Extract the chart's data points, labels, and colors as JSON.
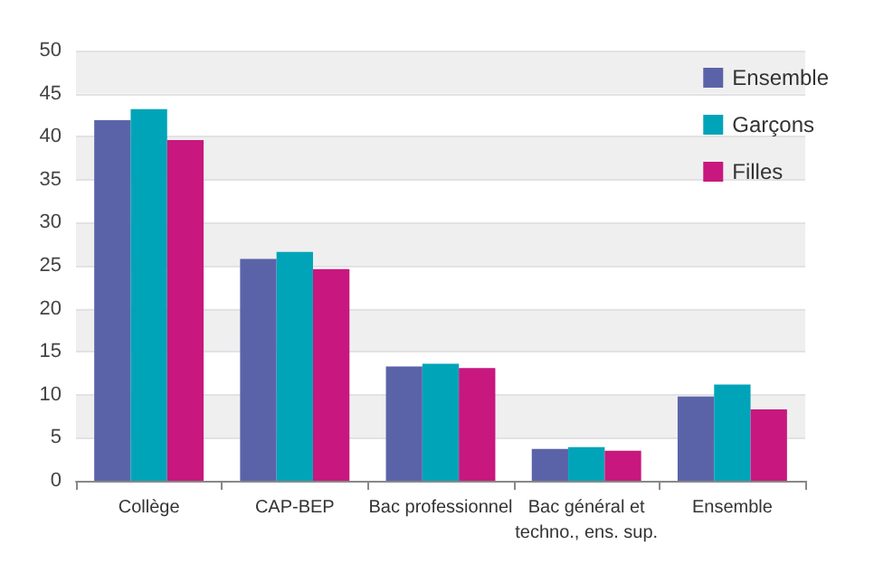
{
  "chart_data": {
    "type": "bar",
    "categories": [
      "Collège",
      "CAP-BEP",
      "Bac professionnel",
      "Bac général et\ntechno., ens. sup.",
      "Ensemble"
    ],
    "series": [
      {
        "name": "Ensemble",
        "color": "#5b63a8",
        "values": [
          41.9,
          25.8,
          13.3,
          3.7,
          9.8
        ]
      },
      {
        "name": "Garçons",
        "color": "#00a4b8",
        "values": [
          43.2,
          26.6,
          13.6,
          3.9,
          11.2
        ]
      },
      {
        "name": "Filles",
        "color": "#c8177e",
        "values": [
          39.6,
          24.6,
          13.1,
          3.5,
          8.3
        ]
      }
    ],
    "ylim": [
      0,
      50
    ],
    "yticks": [
      0,
      5,
      10,
      15,
      20,
      25,
      30,
      35,
      40,
      45,
      50
    ],
    "grid": "y",
    "legend": "top right"
  }
}
